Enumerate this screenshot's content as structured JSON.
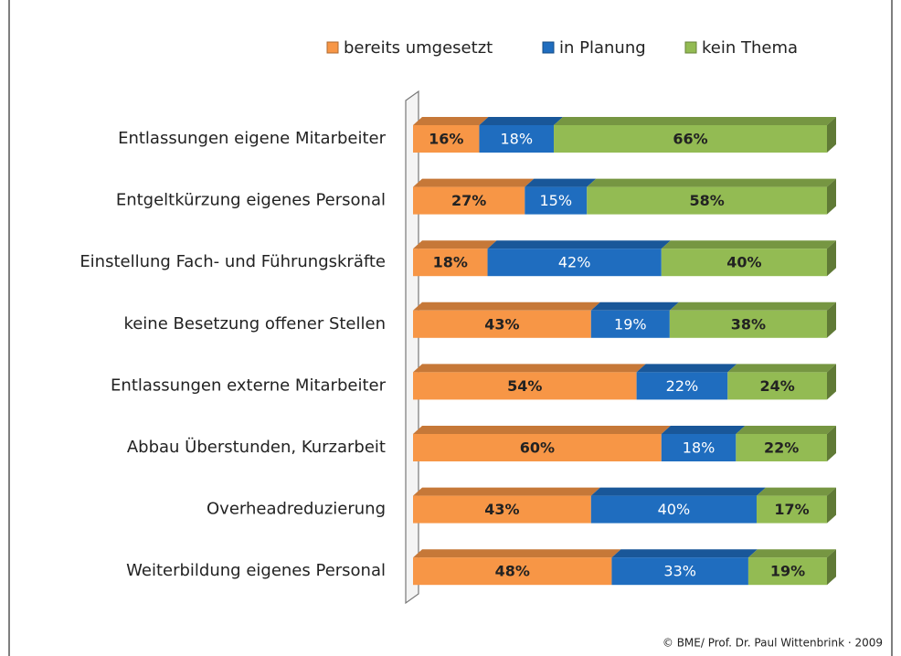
{
  "chart_data": {
    "type": "stacked-bar-horizontal",
    "categories": [
      "Entlassungen eigene  Mitarbeiter",
      "Entgeltkürzung eigenes Personal",
      "Einstellung Fach- und Führungskräfte",
      "keine Besetzung offener Stellen",
      "Entlassungen externe Mitarbeiter",
      "Abbau Überstunden, Kurzarbeit",
      "Overheadreduzierung",
      "Weiterbildung eigenes Personal"
    ],
    "series": [
      {
        "name": "bereits umgesetzt",
        "color": "#f79646",
        "values": [
          16,
          27,
          18,
          43,
          54,
          60,
          43,
          48
        ],
        "value_labels": [
          "16%",
          "27%",
          "18%",
          "43%",
          "54%",
          "60%",
          "43%",
          "48%"
        ]
      },
      {
        "name": "in Planung",
        "color": "#1f6dbf",
        "values": [
          18,
          15,
          42,
          19,
          22,
          18,
          40,
          33
        ],
        "value_labels": [
          "18%",
          "15%",
          "42%",
          "19%",
          "22%",
          "18%",
          "40%",
          "33%"
        ]
      },
      {
        "name": "kein Thema",
        "color": "#93bb53",
        "values": [
          66,
          58,
          40,
          38,
          24,
          22,
          17,
          19
        ],
        "value_labels": [
          "66%",
          "58%",
          "40%",
          "38%",
          "24%",
          "22%",
          "17%",
          "19%"
        ]
      }
    ],
    "xlim": [
      0,
      100
    ],
    "legend": "top",
    "source": "© BME/ Prof. Dr. Paul Wittenbrink · 2009"
  }
}
